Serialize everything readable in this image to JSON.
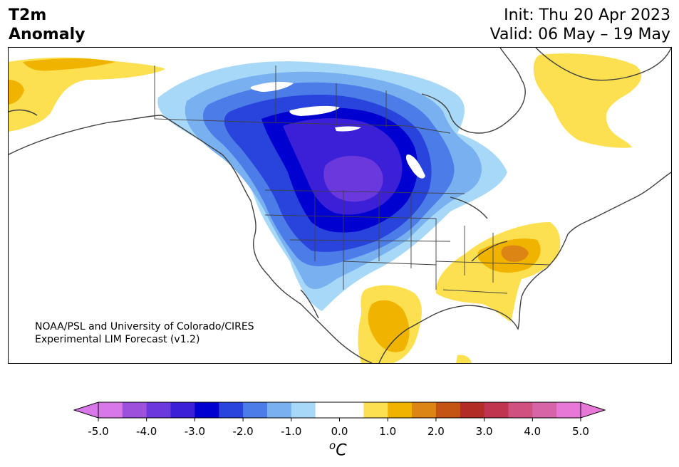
{
  "title": {
    "line1": "T2m",
    "line2": "Anomaly"
  },
  "header": {
    "init": "Init: Thu 20 Apr 2023",
    "valid": "Valid: 06 May – 19 May"
  },
  "credit": {
    "line1": "NOAA/PSL and University of Colorado/CIRES",
    "line2": "Experimental LIM Forecast (v1.2)"
  },
  "colorbar": {
    "unit_sup": "o",
    "unit": "C",
    "ticks": [
      "-5.0",
      "-4.0",
      "-3.0",
      "-2.0",
      "-1.0",
      "0.0",
      "1.0",
      "2.0",
      "3.0",
      "4.0",
      "5.0"
    ],
    "under_color": "#d878e8",
    "over_color": "#e878d8",
    "colors": [
      "#d878e8",
      "#9c50dc",
      "#6a38dc",
      "#3c20d8",
      "#0000d0",
      "#2844dc",
      "#4c7ce8",
      "#78b0f0",
      "#a8d8f8",
      "#ffffff",
      "#ffffff",
      "#fde050",
      "#f0b400",
      "#dc8414",
      "#c45414",
      "#b02c24",
      "#c03450",
      "#d05080",
      "#d864a8",
      "#e878d8"
    ]
  },
  "colors": {
    "coastline": "#404040",
    "strong_cold": "#6a38dc",
    "cold": "#0000d0",
    "warm": "#fde050",
    "warmer": "#f0b400"
  }
}
